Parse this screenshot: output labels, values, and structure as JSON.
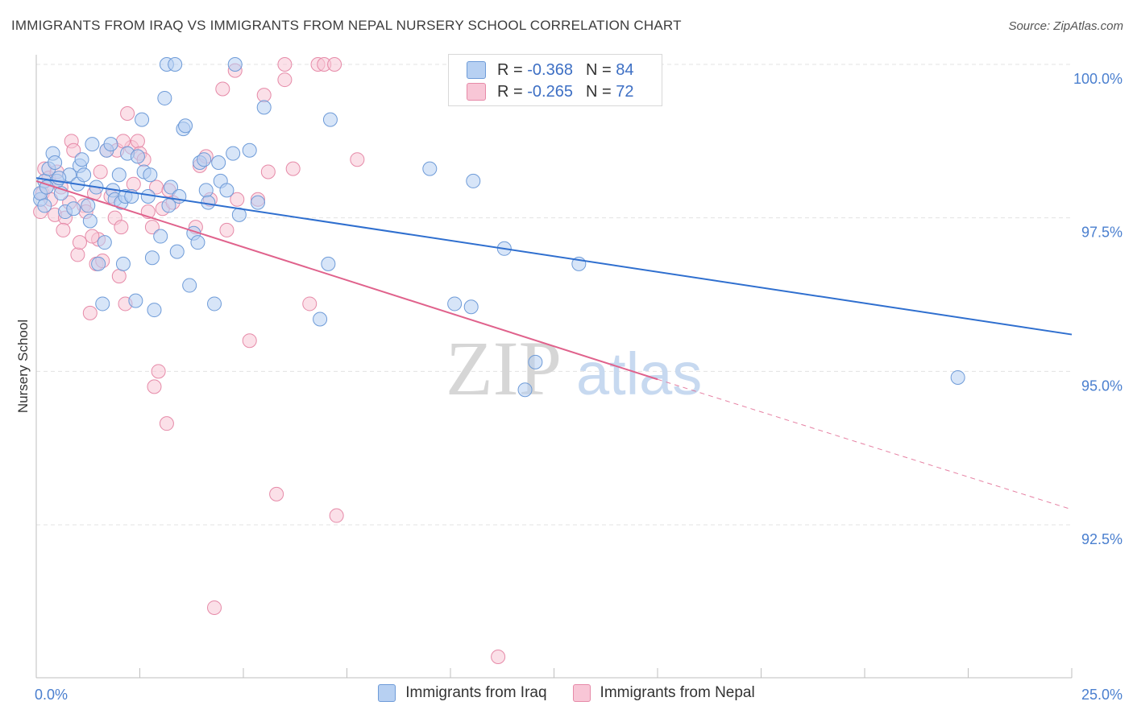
{
  "title": "IMMIGRANTS FROM IRAQ VS IMMIGRANTS FROM NEPAL NURSERY SCHOOL CORRELATION CHART",
  "source": "Source: ZipAtlas.com",
  "watermark": {
    "zip": "ZIP",
    "atlas": "atlas"
  },
  "legend": {
    "rows": [
      {
        "r_label": "R =",
        "r_value": "-0.368",
        "n_label": "N =",
        "n_value": "84"
      },
      {
        "r_label": "R =",
        "r_value": "-0.265",
        "n_label": "N =",
        "n_value": "72"
      }
    ]
  },
  "colors": {
    "iraq_fill": "#b7d0f2",
    "iraq_stroke": "#6e9bd8",
    "iraq_line": "#2f6fcf",
    "nepal_fill": "#f8c6d6",
    "nepal_stroke": "#e68aa8",
    "nepal_line": "#e0628c",
    "tick_label": "#4a7fcf",
    "grid": "#e3e3e3"
  },
  "chart_data": {
    "type": "scatter",
    "title": "IMMIGRANTS FROM IRAQ VS IMMIGRANTS FROM NEPAL NURSERY SCHOOL CORRELATION CHART",
    "xlabel": "",
    "ylabel": "Nursery School",
    "xlim": [
      0,
      25
    ],
    "ylim": [
      90.2,
      100.6
    ],
    "x_tick_labels": [
      "0.0%",
      "25.0%"
    ],
    "y_ticks": [
      92.5,
      95.0,
      97.5,
      100.0
    ],
    "y_tick_labels": [
      "92.5%",
      "95.0%",
      "97.5%",
      "100.0%"
    ],
    "grid": true,
    "legend_position": "bottom-center",
    "series": [
      {
        "name": "Immigrants from Iraq",
        "R": -0.368,
        "N": 84,
        "trend": {
          "x0": 0.0,
          "y0": 98.15,
          "x1": 25.0,
          "y1": 95.6,
          "dashed_from": null
        },
        "points": [
          [
            0.1,
            97.8
          ],
          [
            0.1,
            97.9
          ],
          [
            0.2,
            98.1
          ],
          [
            0.2,
            97.7
          ],
          [
            0.3,
            98.3
          ],
          [
            0.4,
            98.55
          ],
          [
            0.45,
            98.4
          ],
          [
            0.5,
            98.1
          ],
          [
            0.6,
            97.9
          ],
          [
            0.7,
            97.6
          ],
          [
            0.8,
            98.2
          ],
          [
            0.9,
            97.65
          ],
          [
            1.0,
            98.05
          ],
          [
            1.05,
            98.35
          ],
          [
            1.1,
            98.45
          ],
          [
            1.15,
            98.2
          ],
          [
            1.3,
            97.45
          ],
          [
            1.35,
            98.7
          ],
          [
            1.45,
            98.0
          ],
          [
            1.5,
            96.75
          ],
          [
            1.6,
            96.1
          ],
          [
            1.65,
            97.1
          ],
          [
            1.7,
            98.6
          ],
          [
            1.8,
            98.7
          ],
          [
            1.85,
            97.95
          ],
          [
            1.9,
            97.8
          ],
          [
            2.0,
            98.2
          ],
          [
            2.05,
            97.75
          ],
          [
            2.1,
            96.75
          ],
          [
            2.15,
            97.85
          ],
          [
            2.2,
            98.55
          ],
          [
            2.3,
            97.85
          ],
          [
            2.4,
            96.15
          ],
          [
            2.45,
            98.5
          ],
          [
            2.55,
            99.1
          ],
          [
            2.6,
            98.25
          ],
          [
            2.7,
            97.85
          ],
          [
            2.75,
            98.2
          ],
          [
            2.8,
            96.85
          ],
          [
            2.85,
            96.0
          ],
          [
            3.0,
            97.2
          ],
          [
            3.1,
            99.45
          ],
          [
            3.15,
            100.0
          ],
          [
            3.2,
            97.7
          ],
          [
            3.25,
            98.0
          ],
          [
            3.35,
            100.0
          ],
          [
            3.4,
            96.95
          ],
          [
            3.45,
            97.85
          ],
          [
            3.55,
            98.95
          ],
          [
            3.6,
            99.0
          ],
          [
            3.7,
            96.4
          ],
          [
            3.8,
            97.25
          ],
          [
            3.9,
            97.1
          ],
          [
            3.95,
            98.4
          ],
          [
            4.05,
            98.45
          ],
          [
            4.1,
            97.95
          ],
          [
            4.15,
            97.75
          ],
          [
            4.3,
            96.1
          ],
          [
            4.4,
            98.4
          ],
          [
            4.45,
            98.1
          ],
          [
            4.6,
            97.95
          ],
          [
            4.75,
            98.55
          ],
          [
            4.8,
            100.0
          ],
          [
            4.9,
            97.55
          ],
          [
            5.15,
            98.6
          ],
          [
            5.35,
            97.75
          ],
          [
            5.5,
            99.3
          ],
          [
            6.85,
            95.85
          ],
          [
            7.05,
            96.75
          ],
          [
            7.1,
            99.1
          ],
          [
            9.5,
            98.3
          ],
          [
            10.1,
            96.1
          ],
          [
            10.5,
            96.05
          ],
          [
            10.55,
            98.1
          ],
          [
            11.3,
            97.0
          ],
          [
            11.8,
            94.7
          ],
          [
            12.05,
            95.15
          ],
          [
            13.1,
            96.75
          ],
          [
            14.15,
            100.0
          ],
          [
            14.25,
            100.0
          ],
          [
            22.25,
            94.9
          ],
          [
            0.25,
            98.0
          ],
          [
            0.55,
            98.15
          ],
          [
            1.25,
            97.7
          ]
        ]
      },
      {
        "name": "Immigrants from Nepal",
        "R": -0.265,
        "N": 72,
        "trend": {
          "x0": 0.0,
          "y0": 98.1,
          "x1": 15.0,
          "y1": 94.87,
          "dashed_to": [
            25.0,
            92.75
          ]
        },
        "points": [
          [
            0.1,
            97.6
          ],
          [
            0.15,
            97.9
          ],
          [
            0.2,
            98.3
          ],
          [
            0.25,
            98.0
          ],
          [
            0.3,
            98.15
          ],
          [
            0.35,
            97.8
          ],
          [
            0.45,
            97.55
          ],
          [
            0.5,
            98.25
          ],
          [
            0.6,
            98.0
          ],
          [
            0.7,
            97.5
          ],
          [
            0.8,
            97.75
          ],
          [
            0.85,
            98.75
          ],
          [
            0.9,
            98.6
          ],
          [
            1.0,
            96.9
          ],
          [
            1.05,
            97.1
          ],
          [
            1.15,
            97.7
          ],
          [
            1.2,
            97.6
          ],
          [
            1.3,
            95.95
          ],
          [
            1.4,
            97.9
          ],
          [
            1.45,
            96.75
          ],
          [
            1.5,
            97.15
          ],
          [
            1.55,
            98.25
          ],
          [
            1.6,
            96.8
          ],
          [
            1.7,
            98.6
          ],
          [
            1.8,
            97.85
          ],
          [
            1.9,
            97.5
          ],
          [
            1.95,
            98.6
          ],
          [
            2.0,
            96.55
          ],
          [
            2.05,
            97.35
          ],
          [
            2.15,
            96.1
          ],
          [
            2.2,
            99.2
          ],
          [
            2.3,
            98.65
          ],
          [
            2.35,
            98.05
          ],
          [
            2.45,
            98.75
          ],
          [
            2.5,
            98.55
          ],
          [
            2.6,
            98.45
          ],
          [
            2.7,
            97.6
          ],
          [
            2.8,
            97.35
          ],
          [
            2.85,
            94.75
          ],
          [
            2.9,
            98.0
          ],
          [
            2.95,
            95.0
          ],
          [
            3.05,
            97.65
          ],
          [
            3.15,
            94.15
          ],
          [
            3.2,
            97.95
          ],
          [
            3.3,
            97.75
          ],
          [
            3.85,
            97.35
          ],
          [
            3.95,
            98.35
          ],
          [
            4.1,
            98.5
          ],
          [
            4.2,
            97.8
          ],
          [
            4.3,
            91.15
          ],
          [
            4.5,
            99.6
          ],
          [
            4.6,
            97.3
          ],
          [
            4.8,
            99.9
          ],
          [
            4.85,
            97.8
          ],
          [
            5.15,
            95.5
          ],
          [
            5.35,
            97.8
          ],
          [
            5.5,
            99.5
          ],
          [
            5.6,
            98.25
          ],
          [
            5.8,
            93.0
          ],
          [
            6.0,
            99.75
          ],
          [
            6.0,
            100.0
          ],
          [
            6.2,
            98.3
          ],
          [
            6.6,
            96.1
          ],
          [
            6.8,
            100.0
          ],
          [
            6.95,
            100.0
          ],
          [
            7.2,
            100.0
          ],
          [
            7.25,
            92.65
          ],
          [
            7.75,
            98.45
          ],
          [
            11.15,
            90.35
          ],
          [
            2.1,
            98.75
          ],
          [
            1.35,
            97.2
          ],
          [
            0.65,
            97.3
          ]
        ]
      }
    ]
  },
  "bottom_legend": {
    "iraq": "Immigrants from Iraq",
    "nepal": "Immigrants from Nepal"
  }
}
